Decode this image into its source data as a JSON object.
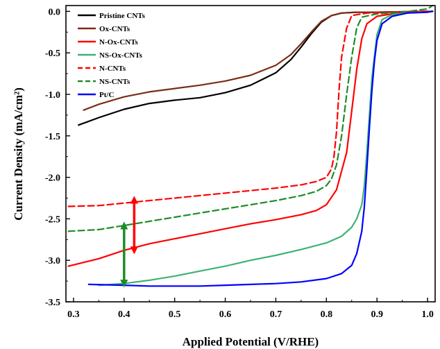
{
  "chart_data": {
    "type": "line",
    "title": "",
    "xlabel": "Applied Potential (V/RHE)",
    "ylabel": "Current Density (mA/cm²)",
    "xlim": [
      0.285,
      1.015
    ],
    "ylim": [
      -3.5,
      0.07
    ],
    "xticks": [
      0.3,
      0.4,
      0.5,
      0.6,
      0.7,
      0.8,
      0.9,
      1.0
    ],
    "xtick_labels": [
      "0.3",
      "0.4",
      "0.5",
      "0.6",
      "0.7",
      "0.8",
      "0.9",
      "1.0"
    ],
    "yticks": [
      0.0,
      -0.5,
      -1.0,
      -1.5,
      -2.0,
      -2.5,
      -3.0,
      -3.5
    ],
    "ytick_labels": [
      "0.0",
      "-0.5",
      "-1.0",
      "-1.5",
      "-2.0",
      "-2.5",
      "-3.0",
      "-3.5"
    ],
    "grid": false,
    "legend_position": "top-left",
    "series": [
      {
        "name": "Pristine CNTs",
        "color": "#000000",
        "dash": "solid",
        "x": [
          0.31,
          0.35,
          0.4,
          0.45,
          0.5,
          0.55,
          0.6,
          0.65,
          0.7,
          0.73,
          0.75,
          0.77,
          0.79,
          0.81,
          0.83,
          0.86,
          0.9,
          0.95,
          1.0,
          1.01
        ],
        "y": [
          -1.37,
          -1.28,
          -1.18,
          -1.11,
          -1.07,
          -1.04,
          -0.98,
          -0.89,
          -0.74,
          -0.58,
          -0.43,
          -0.27,
          -0.13,
          -0.05,
          -0.02,
          -0.01,
          -0.01,
          -0.005,
          0.0,
          0.0
        ]
      },
      {
        "name": "Ox-CNTs",
        "color": "#7B2C16",
        "dash": "solid",
        "x": [
          0.32,
          0.35,
          0.4,
          0.45,
          0.5,
          0.55,
          0.6,
          0.65,
          0.7,
          0.73,
          0.75,
          0.77,
          0.79,
          0.81,
          0.83,
          0.86,
          0.9,
          0.95,
          1.0,
          1.01
        ],
        "y": [
          -1.19,
          -1.12,
          -1.03,
          -0.97,
          -0.93,
          -0.89,
          -0.84,
          -0.77,
          -0.65,
          -0.52,
          -0.39,
          -0.25,
          -0.12,
          -0.05,
          -0.02,
          -0.01,
          -0.01,
          -0.005,
          0.0,
          0.0
        ]
      },
      {
        "name": "N-Ox-CNTs",
        "color": "#FF0000",
        "dash": "solid",
        "x": [
          0.29,
          0.35,
          0.4,
          0.45,
          0.5,
          0.55,
          0.6,
          0.65,
          0.7,
          0.75,
          0.78,
          0.8,
          0.82,
          0.84,
          0.85,
          0.86,
          0.87,
          0.88,
          0.9,
          0.93,
          0.96,
          1.0,
          1.01
        ],
        "y": [
          -3.07,
          -2.98,
          -2.88,
          -2.8,
          -2.74,
          -2.68,
          -2.62,
          -2.56,
          -2.51,
          -2.45,
          -2.4,
          -2.33,
          -2.15,
          -1.7,
          -1.2,
          -0.7,
          -0.33,
          -0.15,
          -0.06,
          -0.03,
          -0.01,
          0.0,
          0.0
        ]
      },
      {
        "name": "NS-Ox-CNTs",
        "color": "#3CB371",
        "dash": "solid",
        "x": [
          0.35,
          0.4,
          0.45,
          0.5,
          0.55,
          0.6,
          0.65,
          0.7,
          0.75,
          0.8,
          0.83,
          0.85,
          0.86,
          0.87,
          0.875,
          0.88,
          0.885,
          0.89,
          0.9,
          0.91,
          0.93,
          0.96,
          1.0,
          1.01
        ],
        "y": [
          -3.3,
          -3.28,
          -3.24,
          -3.19,
          -3.13,
          -3.07,
          -3.0,
          -2.94,
          -2.87,
          -2.79,
          -2.71,
          -2.6,
          -2.5,
          -2.33,
          -2.1,
          -1.7,
          -1.25,
          -0.8,
          -0.28,
          -0.1,
          -0.04,
          -0.02,
          0.0,
          0.0
        ]
      },
      {
        "name": "N-CNTs",
        "color": "#FF0000",
        "dash": "dashed",
        "x": [
          0.29,
          0.35,
          0.4,
          0.45,
          0.5,
          0.55,
          0.6,
          0.65,
          0.7,
          0.75,
          0.78,
          0.8,
          0.81,
          0.815,
          0.82,
          0.825,
          0.83,
          0.84,
          0.85,
          0.88,
          0.93,
          1.0,
          1.01
        ],
        "y": [
          -2.35,
          -2.34,
          -2.31,
          -2.28,
          -2.25,
          -2.22,
          -2.19,
          -2.16,
          -2.13,
          -2.09,
          -2.05,
          -2.0,
          -1.9,
          -1.75,
          -1.45,
          -0.95,
          -0.55,
          -0.2,
          -0.05,
          -0.02,
          -0.01,
          0.0,
          0.0
        ]
      },
      {
        "name": "NS-CNTs",
        "color": "#1E8C28",
        "dash": "dashed",
        "x": [
          0.29,
          0.35,
          0.4,
          0.45,
          0.5,
          0.55,
          0.6,
          0.65,
          0.7,
          0.75,
          0.78,
          0.8,
          0.81,
          0.82,
          0.83,
          0.84,
          0.85,
          0.86,
          0.87,
          0.9,
          0.95,
          1.0,
          1.01
        ],
        "y": [
          -2.65,
          -2.63,
          -2.58,
          -2.53,
          -2.48,
          -2.43,
          -2.38,
          -2.33,
          -2.28,
          -2.22,
          -2.17,
          -2.1,
          -2.02,
          -1.85,
          -1.5,
          -1.0,
          -0.55,
          -0.2,
          -0.07,
          -0.03,
          -0.01,
          0.03,
          0.07
        ]
      },
      {
        "name": "Pt/C",
        "color": "#0000FF",
        "dash": "solid",
        "x": [
          0.33,
          0.4,
          0.45,
          0.5,
          0.55,
          0.6,
          0.65,
          0.7,
          0.75,
          0.8,
          0.83,
          0.85,
          0.86,
          0.87,
          0.875,
          0.88,
          0.885,
          0.89,
          0.895,
          0.9,
          0.91,
          0.93,
          0.96,
          1.0,
          1.01
        ],
        "y": [
          -3.29,
          -3.3,
          -3.31,
          -3.31,
          -3.31,
          -3.3,
          -3.29,
          -3.28,
          -3.26,
          -3.22,
          -3.16,
          -3.06,
          -2.92,
          -2.65,
          -2.35,
          -1.9,
          -1.4,
          -0.95,
          -0.6,
          -0.35,
          -0.15,
          -0.06,
          -0.02,
          -0.01,
          0.0
        ]
      }
    ],
    "annotations": [
      {
        "type": "double-arrow",
        "color": "#FF0000",
        "x": 0.42,
        "y_from": -2.27,
        "y_to": -2.88
      },
      {
        "type": "double-arrow",
        "color": "#1E8C28",
        "x": 0.4,
        "y_from": -2.58,
        "y_to": -3.28
      }
    ]
  }
}
